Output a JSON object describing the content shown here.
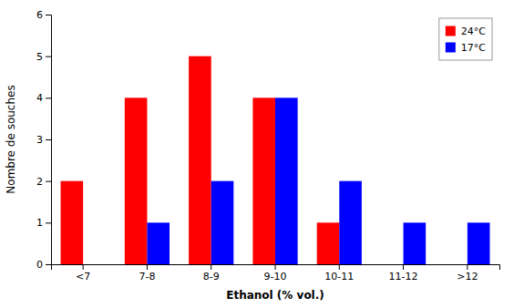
{
  "chart_data": {
    "type": "bar",
    "categories": [
      "<7",
      "7-8",
      "8-9",
      "9-10",
      "10-11",
      "11-12",
      ">12"
    ],
    "series": [
      {
        "name": "24°C",
        "color": "#FF0000",
        "values": [
          2,
          4,
          5,
          4,
          1,
          0,
          0
        ]
      },
      {
        "name": "17°C",
        "color": "#0000FF",
        "values": [
          0,
          1,
          2,
          4,
          2,
          1,
          1
        ]
      }
    ],
    "xlabel": "Ethanol (% vol.)",
    "ylabel": "Nombre de souches",
    "ylim": [
      0,
      6
    ],
    "yticks": [
      0,
      1,
      2,
      3,
      4,
      5,
      6
    ],
    "grid": false,
    "legend": "upper right"
  }
}
